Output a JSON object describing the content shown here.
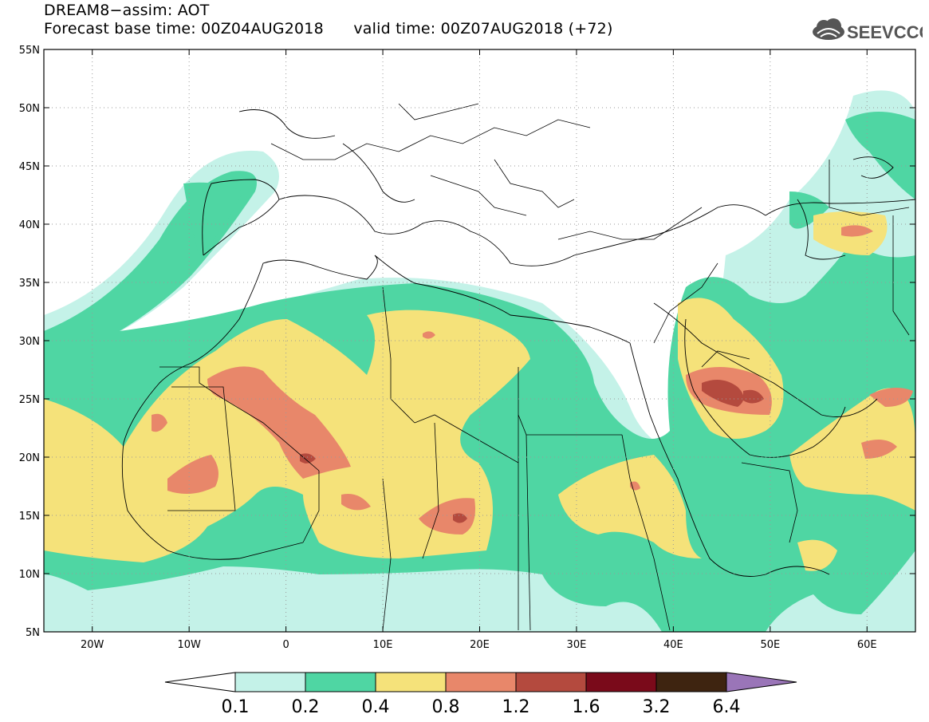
{
  "title": "DREAM8−assim: AOT",
  "forecast_base_label": "Forecast base time: 00Z04AUG2018",
  "valid_label": "valid time: 00Z07AUG2018 (+72)",
  "logo_text": "SEEVCCC",
  "map": {
    "lon_range": [
      -25,
      65
    ],
    "lat_range": [
      5,
      55
    ],
    "lat_ticks": [
      "55N",
      "50N",
      "45N",
      "40N",
      "35N",
      "30N",
      "25N",
      "20N",
      "15N",
      "10N",
      "5N"
    ],
    "lon_ticks": [
      "20W",
      "10W",
      "0",
      "10E",
      "20E",
      "30E",
      "40E",
      "50E",
      "60E"
    ]
  },
  "colorbar": {
    "labels": [
      "0.1",
      "0.2",
      "0.4",
      "0.8",
      "1.2",
      "1.6",
      "3.2",
      "6.4"
    ],
    "colors": [
      "#c4f2e8",
      "#4fd6a3",
      "#f5e27a",
      "#e8876a",
      "#b44a3e",
      "#7a0a1a",
      "#3e2410",
      "#9a75b8"
    ]
  },
  "colors": {
    "c1": "#c4f2e8",
    "c2": "#4fd6a3",
    "c3": "#f5e27a",
    "c4": "#e8876a",
    "c5": "#b44a3e"
  }
}
